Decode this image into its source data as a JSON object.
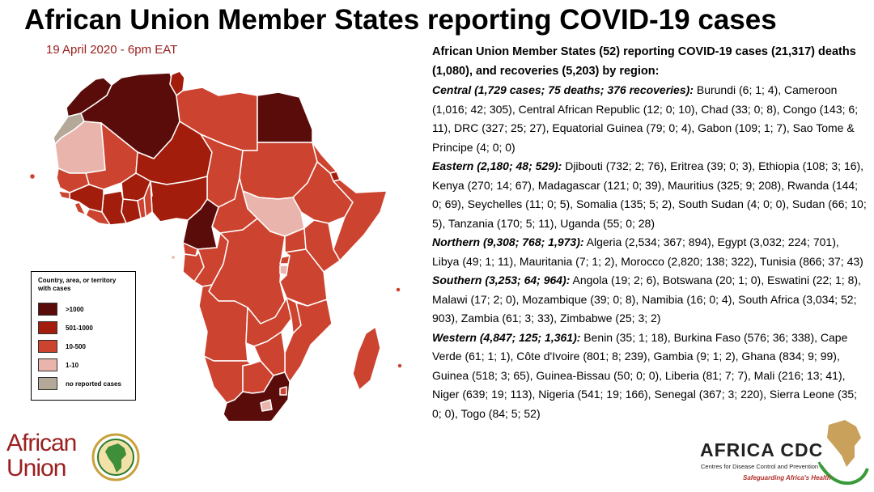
{
  "title": "African Union Member States reporting COVID-19 cases",
  "date": "19 April 2020 - 6pm EAT",
  "colors": {
    "gt1000": "#5a0c0a",
    "c501_1000": "#a31d0c",
    "c10_500": "#cc4330",
    "c1_10": "#e8b4ac",
    "none": "#b4a999",
    "border": "#ffffff"
  },
  "legend": {
    "title": "Country, area, or territory with cases",
    "items": [
      {
        "label": ">1000",
        "color": "#5a0c0a"
      },
      {
        "label": "501-1000",
        "color": "#a31d0c"
      },
      {
        "label": "10-500",
        "color": "#cc4330"
      },
      {
        "label": "1-10",
        "color": "#e8b4ac"
      },
      {
        "label": "no reported cases",
        "color": "#b4a999"
      }
    ]
  },
  "summary": {
    "heading": "African Union Member States (52) reporting COVID-19 cases (21,317) deaths (1,080), and recoveries (5,203) by region:",
    "regions": [
      {
        "label": "Central (1,729 cases; 75 deaths; 376 recoveries):",
        "text": "  Burundi (6; 1; 4), Cameroon (1,016; 42; 305), Central African Republic (12; 0; 10), Chad (33; 0; 8), Congo (143; 6; 11), DRC (327; 25; 27), Equatorial Guinea (79; 0; 4), Gabon (109; 1; 7), Sao Tome & Principe (4; 0; 0)"
      },
      {
        "label": "Eastern (2,180; 48; 529):",
        "text": " Djibouti (732; 2; 76), Eritrea (39; 0; 3), Ethiopia (108; 3; 16), Kenya (270; 14; 67), Madagascar (121; 0; 39), Mauritius (325; 9; 208), Rwanda (144; 0; 69), Seychelles (11; 0; 5), Somalia (135; 5; 2), South Sudan (4; 0; 0), Sudan (66; 10; 5), Tanzania (170; 5; 11), Uganda (55; 0; 28)"
      },
      {
        "label": "Northern (9,308; 768; 1,973):",
        "text": " Algeria (2,534; 367; 894), Egypt (3,032; 224; 701), Libya (49; 1; 11), Mauritania (7; 1; 2), Morocco (2,820; 138; 322), Tunisia (866; 37; 43)"
      },
      {
        "label": "Southern (3,253; 64; 964):",
        "text": " Angola (19; 2; 6), Botswana (20; 1; 0), Eswatini (22; 1; 8), Malawi (17; 2; 0), Mozambique (39; 0; 8),  Namibia (16; 0; 4), South Africa (3,034; 52; 903), Zambia (61; 3; 33), Zimbabwe (25; 3; 2)"
      },
      {
        "label": "Western (4,847; 125; 1,361):",
        "text": " Benin (35; 1; 18), Burkina Faso (576; 36; 338), Cape Verde (61; 1; 1), Côte d'Ivoire (801; 8; 239), Gambia (9; 1; 2), Ghana (834; 9; 99), Guinea (518; 3; 65), Guinea-Bissau (50; 0; 0), Liberia (81; 7; 7), Mali (216; 13; 41), Niger (639; 19; 113), Nigeria (541; 19; 166), Senegal (367; 3; 220), Sierra Leone (35; 0; 0), Togo (84; 5; 52)"
      }
    ]
  },
  "logos": {
    "au_line1": "African",
    "au_line2": "Union",
    "cdc_name": "AFRICA CDC",
    "cdc_sub": "Centres for Disease Control and Prevention",
    "cdc_tag": "Safeguarding Africa's Health"
  }
}
